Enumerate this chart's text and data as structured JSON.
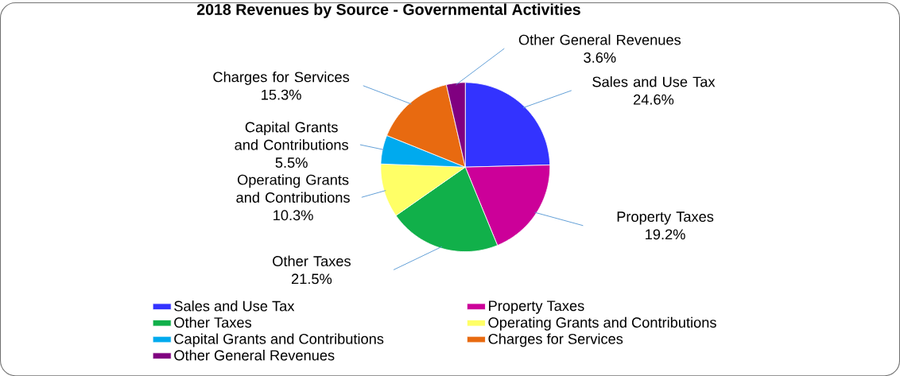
{
  "chart_data": {
    "type": "pie",
    "title": "2018 Revenues by Source - Governmental Activities",
    "categories": [
      "Sales and Use Tax",
      "Property Taxes",
      "Other Taxes",
      "Operating Grants and Contributions",
      "Capital Grants and Contributions",
      "Charges for Services",
      "Other General Revenues"
    ],
    "values": [
      24.6,
      19.2,
      21.5,
      10.3,
      5.5,
      15.3,
      3.6
    ],
    "value_labels": [
      "24.6%",
      "19.2%",
      "21.5%",
      "10.3%",
      "5.5%",
      "15.3%",
      "3.6%"
    ],
    "colors": [
      "#3333ff",
      "#cc0099",
      "#11b04a",
      "#ffff66",
      "#00aaee",
      "#e86a10",
      "#800080"
    ],
    "legend": "bottom"
  }
}
